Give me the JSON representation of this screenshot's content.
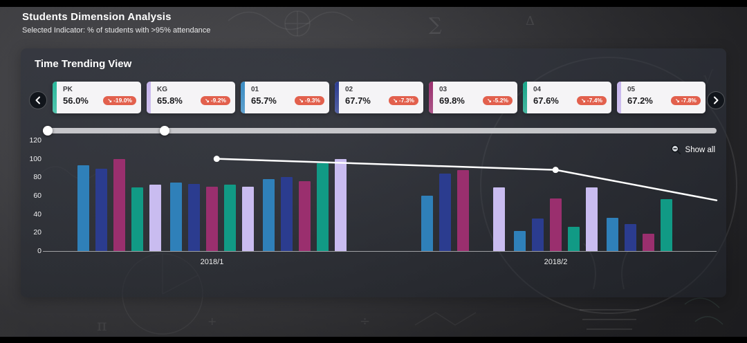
{
  "header": {
    "title": "Students Dimension Analysis",
    "subtitle": "Selected Indicator: % of students with >95% attendance"
  },
  "panel": {
    "title": "Time Trending View",
    "show_all_label": "Show all"
  },
  "cards": [
    {
      "grade": "PK",
      "value": "56.0%",
      "delta": "-19.0%",
      "accent": "#29b89b"
    },
    {
      "grade": "KG",
      "value": "65.8%",
      "delta": "-9.2%",
      "accent": "#c6b5ee"
    },
    {
      "grade": "01",
      "value": "65.7%",
      "delta": "-9.3%",
      "accent": "#3a8cc4"
    },
    {
      "grade": "02",
      "value": "67.7%",
      "delta": "-7.3%",
      "accent": "#2b3c8f"
    },
    {
      "grade": "03",
      "value": "69.8%",
      "delta": "-5.2%",
      "accent": "#9a2f6e"
    },
    {
      "grade": "04",
      "value": "67.6%",
      "delta": "-7.4%",
      "accent": "#19a689"
    },
    {
      "grade": "05",
      "value": "67.2%",
      "delta": "-7.8%",
      "accent": "#c6b5ee"
    }
  ],
  "badge_icon": "↘",
  "slider": {
    "start": 0.007,
    "end": 0.181
  },
  "colors": {
    "badge": "#e2604d",
    "line": "#ffffff",
    "series": {
      "blue": "#2f80b9",
      "navy": "#2b3c8f",
      "magenta": "#9a2f6e",
      "teal": "#119a85",
      "lavender": "#c9bcf0"
    }
  },
  "chart_data": {
    "type": "bar",
    "title": "Time Trending View",
    "ylim": [
      0,
      120
    ],
    "yticks": [
      0,
      20,
      40,
      60,
      80,
      100,
      120
    ],
    "x_groups": [
      "2018/1",
      "2018/2"
    ],
    "series_color_order": [
      "blue",
      "navy",
      "magenta",
      "teal",
      "lavender"
    ],
    "groups": [
      {
        "label": "2018/1",
        "bars": [
          {
            "c": "blue",
            "v": 93
          },
          {
            "c": "navy",
            "v": 89
          },
          {
            "c": "magenta",
            "v": 100
          },
          {
            "c": "teal",
            "v": 69
          },
          {
            "c": "lavender",
            "v": 72
          },
          {
            "c": "blue",
            "v": 74
          },
          {
            "c": "navy",
            "v": 73
          },
          {
            "c": "magenta",
            "v": 70
          },
          {
            "c": "teal",
            "v": 72
          },
          {
            "c": "lavender",
            "v": 70
          },
          {
            "c": "blue",
            "v": 78
          },
          {
            "c": "navy",
            "v": 80
          },
          {
            "c": "magenta",
            "v": 76
          },
          {
            "c": "teal",
            "v": 95
          },
          {
            "c": "lavender",
            "v": 100
          }
        ]
      },
      {
        "label": "2018/2",
        "bars": [
          {
            "c": "blue",
            "v": 60
          },
          {
            "c": "navy",
            "v": 84
          },
          {
            "c": "magenta",
            "v": 88
          },
          {
            "c": "teal",
            "v": 0
          },
          {
            "c": "lavender",
            "v": 69
          },
          {
            "c": "blue",
            "v": 22
          },
          {
            "c": "navy",
            "v": 35
          },
          {
            "c": "magenta",
            "v": 57
          },
          {
            "c": "teal",
            "v": 26
          },
          {
            "c": "lavender",
            "v": 69
          },
          {
            "c": "blue",
            "v": 36
          },
          {
            "c": "navy",
            "v": 29
          },
          {
            "c": "magenta",
            "v": 19
          },
          {
            "c": "teal",
            "v": 56
          },
          {
            "c": "lavender",
            "v": 0
          }
        ]
      }
    ],
    "line": {
      "color": "#ffffff",
      "points": [
        {
          "xf": 0.258,
          "value": 100,
          "dot": true
        },
        {
          "xf": 0.761,
          "value": 88,
          "dot": true
        },
        {
          "xf": 1.0,
          "value": 55,
          "dot": false
        }
      ]
    }
  }
}
